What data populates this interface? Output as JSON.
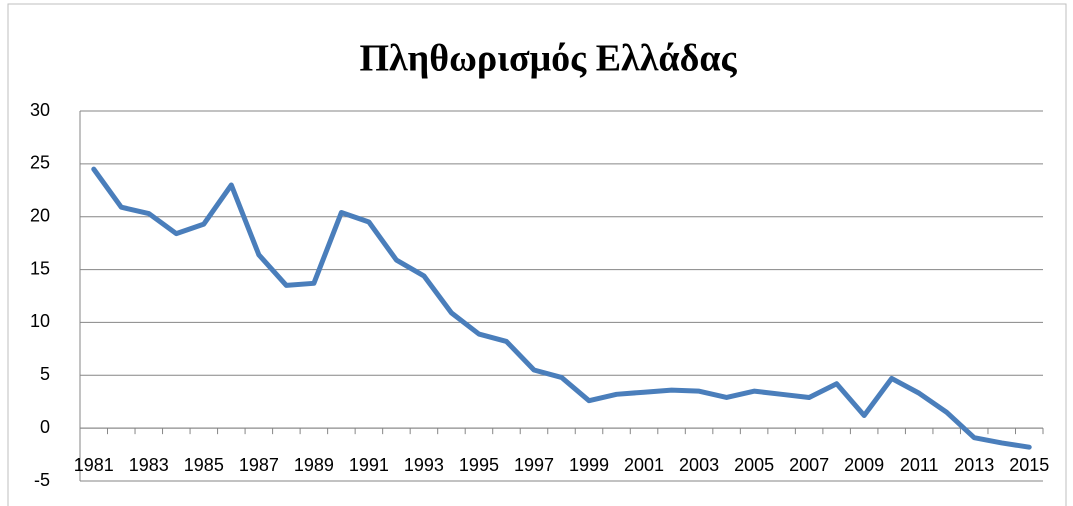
{
  "chart_data": {
    "type": "line",
    "title": "Πληθωρισμός Ελλάδας",
    "categories": [
      "1981",
      null,
      "1983",
      null,
      "1985",
      null,
      "1987",
      null,
      "1989",
      null,
      "1991",
      null,
      "1993",
      null,
      "1995",
      null,
      "1997",
      null,
      "1999",
      null,
      "2001",
      null,
      "2003",
      null,
      "2005",
      null,
      "2007",
      null,
      "2009",
      null,
      "2011",
      null,
      "2013",
      null,
      "2015"
    ],
    "series": [
      {
        "color": "#4a7ebb",
        "values": [
          24.5,
          20.9,
          20.3,
          18.4,
          19.3,
          23.0,
          16.4,
          13.5,
          13.7,
          20.4,
          19.5,
          15.9,
          14.4,
          10.9,
          8.9,
          8.2,
          5.5,
          4.8,
          2.6,
          3.2,
          3.4,
          3.6,
          3.5,
          2.9,
          3.5,
          3.2,
          2.9,
          4.2,
          1.2,
          4.7,
          3.3,
          1.5,
          -0.9,
          -1.4,
          -1.8
        ]
      }
    ],
    "ylim": [
      -5,
      30
    ],
    "yticks": [
      -5,
      0,
      5,
      10,
      15,
      20,
      25,
      30
    ],
    "grid": true
  }
}
